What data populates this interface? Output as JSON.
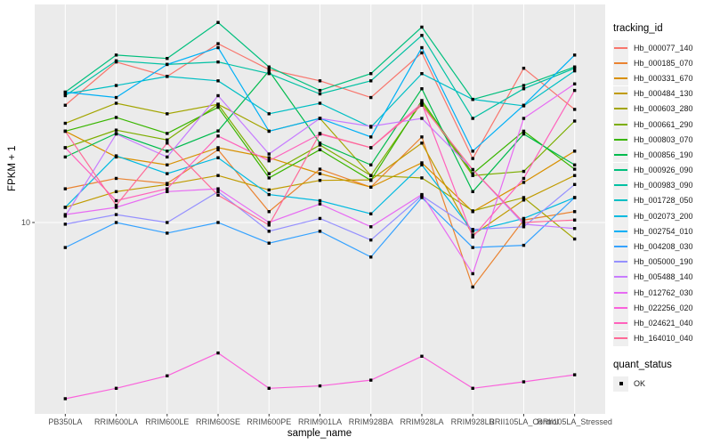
{
  "chart_data": {
    "type": "line",
    "xlabel": "sample_name",
    "ylabel": "FPKM + 1",
    "y_scale": "log10",
    "y_ticks": [
      "10"
    ],
    "y_tick_values": [
      10
    ],
    "ylim": [
      1.0,
      138
    ],
    "grid": "major-white-on-grey",
    "panel_bg": "#ebebeb",
    "grid_color": "#ffffff",
    "tick_color": "#333333",
    "point_color": "#000000",
    "legend_position": "right",
    "legend_titles": {
      "series": "tracking_id",
      "points": "quant_status"
    },
    "quant_status_items": [
      {
        "label": "OK"
      }
    ],
    "categories": [
      "PB350LA",
      "RRIM600LA",
      "RRIM600LE",
      "RRIM600SE",
      "RRIM600PE",
      "RRIM901LA",
      "RRIM928BA",
      "RRIM928LA",
      "RRIM928LB",
      "RRII105LA_Control",
      "RRII105LA_Stressed"
    ],
    "series": [
      {
        "name": "Hb_000077_140",
        "color": "#F8766D",
        "values": [
          41,
          69,
          58,
          86,
          63,
          55,
          45,
          77,
          21.6,
          64,
          39
        ]
      },
      {
        "name": "Hb_000185_070",
        "color": "#EA8331",
        "values": [
          15,
          17,
          16,
          24,
          11.4,
          19,
          15.3,
          28,
          4.6,
          10.3,
          11.4
        ]
      },
      {
        "name": "Hb_000331_670",
        "color": "#D89000",
        "values": [
          30,
          22,
          20,
          24.6,
          21.8,
          18,
          15.3,
          20.5,
          11.4,
          16.2,
          23.6
        ]
      },
      {
        "name": "Hb_000484_130",
        "color": "#C09B00",
        "values": [
          12,
          14.5,
          15.8,
          17.6,
          14.8,
          16.6,
          16.7,
          26,
          8.6,
          13.1,
          17.6
        ]
      },
      {
        "name": "Hb_000603_280",
        "color": "#A3A500",
        "values": [
          33,
          42,
          37,
          41.5,
          30,
          35,
          17.6,
          17.1,
          11.5,
          13.5,
          8.2
        ]
      },
      {
        "name": "Hb_000661_290",
        "color": "#7CAE00",
        "values": [
          24.6,
          30.4,
          27,
          41.5,
          18,
          25.4,
          17.6,
          42.4,
          17.6,
          18.5,
          33.9
        ]
      },
      {
        "name": "Hb_000803_070",
        "color": "#39B600",
        "values": [
          30,
          35.4,
          29.2,
          40,
          17.1,
          24,
          16.6,
          43.4,
          18,
          30,
          19
        ]
      },
      {
        "name": "Hb_000856_190",
        "color": "#00BB4E",
        "values": [
          22,
          29.2,
          23.6,
          30.1,
          62,
          26,
          20,
          50,
          14.5,
          29,
          20
        ]
      },
      {
        "name": "Hb_000926_090",
        "color": "#00BF7D",
        "values": [
          48,
          75,
          72,
          111,
          65,
          49,
          60,
          105,
          44,
          52,
          65
        ]
      },
      {
        "name": "Hb_000983_090",
        "color": "#00C1A3",
        "values": [
          46,
          70,
          67,
          69,
          60,
          47,
          55,
          95,
          35,
          50,
          64
        ]
      },
      {
        "name": "Hb_001728_050",
        "color": "#00BFC4",
        "values": [
          47,
          52,
          58,
          55,
          37,
          42,
          31.5,
          60,
          44,
          40.7,
          62
        ]
      },
      {
        "name": "Hb_002073_200",
        "color": "#00BAE0",
        "values": [
          12,
          22.3,
          18,
          21.8,
          14,
          13,
          11.1,
          20,
          9,
          10.5,
          13.5
        ]
      },
      {
        "name": "Hb_002754_010",
        "color": "#00B0F6",
        "values": [
          48,
          45,
          67,
          82,
          30,
          35,
          28,
          82,
          23.6,
          41,
          75
        ]
      },
      {
        "name": "Hb_004208_030",
        "color": "#35A2FF",
        "values": [
          7.4,
          10,
          8.8,
          10,
          7.8,
          9,
          6.6,
          13.5,
          7.4,
          7.6,
          13.5
        ]
      },
      {
        "name": "Hb_005000_190",
        "color": "#9590FF",
        "values": [
          9.8,
          11,
          10,
          14.5,
          9,
          10.5,
          8.1,
          13.8,
          9.2,
          9.5,
          15.8
        ]
      },
      {
        "name": "Hb_005488_140",
        "color": "#C77CFF",
        "values": [
          10.8,
          29,
          22,
          46,
          22.8,
          35,
          31.8,
          35,
          18.9,
          9.8,
          9.3
        ]
      },
      {
        "name": "Hb_012762_030",
        "color": "#E76BF3",
        "values": [
          11,
          12,
          14.5,
          15,
          10,
          12.5,
          9.5,
          14,
          5.4,
          35,
          53
        ]
      },
      {
        "name": "Hb_022256_020",
        "color": "#FA62DB",
        "values": [
          1.2,
          1.36,
          1.58,
          2.08,
          1.36,
          1.4,
          1.5,
          2.0,
          1.36,
          1.47,
          1.6
        ]
      },
      {
        "name": "Hb_024621_040",
        "color": "#FF62BC",
        "values": [
          24.6,
          13,
          15,
          28.3,
          21,
          29,
          24.6,
          42,
          8.4,
          17,
          49
        ]
      },
      {
        "name": "Hb_164010_040",
        "color": "#FF6A98",
        "values": [
          30,
          12.3,
          26,
          13.9,
          9.7,
          29.2,
          24.6,
          41,
          18.9,
          10,
          10.3
        ]
      }
    ]
  }
}
